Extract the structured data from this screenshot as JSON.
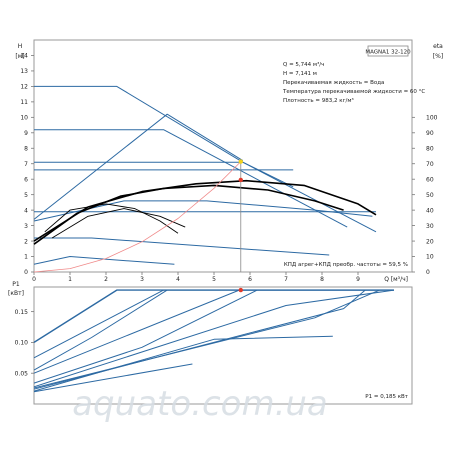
{
  "model_label": "MAGNA1 32-120",
  "watermark": "aquato.com.ua",
  "info_lines": [
    "Q = 5,744 м³/ч",
    "H = 7,141 м",
    "Перекачиваемая жидкость = Вода",
    "Температура перекачиваемой жидкости = 60 °C",
    "Плотность = 983,2 кг/м³"
  ],
  "efficiency_note": "КПД агрег+КПД преобр. частоты = 59,5 %",
  "power_note": "P1 = 0,185 кВт",
  "colors": {
    "curve": "#2d6aa3",
    "eff": "#000000",
    "system": "#f08a8a",
    "point_top": "#f2d21b",
    "point": "#e03a2a",
    "axis": "#444444"
  },
  "chart_data": [
    {
      "type": "line",
      "title": "",
      "xlabel": "Q [м³/ч]",
      "ylabel": "H [м]",
      "y2label": "eta [%]",
      "xlim": [
        0,
        10.5
      ],
      "ylim": [
        0,
        15
      ],
      "y2lim": [
        0,
        150
      ],
      "x_ticks": [
        0,
        1,
        2,
        3,
        4,
        5,
        6,
        7,
        8,
        9
      ],
      "y_ticks": [
        0,
        1,
        2,
        3,
        4,
        5,
        6,
        7,
        8,
        9,
        10,
        11,
        12,
        13,
        14
      ],
      "y2_ticks": [
        0,
        10,
        20,
        30,
        40,
        50,
        60,
        70,
        80,
        90,
        100
      ],
      "grid": false,
      "series": [
        {
          "role": "head",
          "x": [
            0,
            2.3,
            5.8,
            9.5
          ],
          "y": [
            12,
            12,
            7.1,
            2.6
          ]
        },
        {
          "role": "head",
          "x": [
            0,
            3.6,
            8.7
          ],
          "y": [
            9.2,
            9.2,
            2.9
          ]
        },
        {
          "role": "head",
          "x": [
            0,
            5.8,
            7.2
          ],
          "y": [
            7.1,
            7.1,
            5.5
          ]
        },
        {
          "role": "head",
          "x": [
            0,
            7.2
          ],
          "y": [
            6.6,
            6.6
          ]
        },
        {
          "role": "head",
          "x": [
            0,
            9.5
          ],
          "y": [
            3.9,
            3.9
          ]
        },
        {
          "role": "head",
          "x": [
            0,
            3.7,
            5.8
          ],
          "y": [
            3.4,
            10.2,
            7.2
          ]
        },
        {
          "role": "head",
          "x": [
            0,
            1.6,
            8.2
          ],
          "y": [
            2.2,
            2.2,
            1.1
          ]
        },
        {
          "role": "head",
          "x": [
            0,
            1.0,
            3.9
          ],
          "y": [
            0.5,
            1.0,
            0.5
          ]
        },
        {
          "role": "head",
          "x": [
            0,
            2.5,
            4.8,
            7.8,
            9.4
          ],
          "y": [
            3.3,
            4.6,
            4.6,
            4.0,
            3.6
          ]
        },
        {
          "role": "efficiency",
          "x": [
            0,
            1.5,
            3.0,
            4.5,
            5.9,
            7.5,
            9.0,
            9.5
          ],
          "y": [
            2.0,
            4.2,
            5.2,
            5.7,
            5.9,
            5.6,
            4.4,
            3.7
          ]
        },
        {
          "role": "efficiency",
          "x": [
            0,
            1.2,
            2.4,
            3.6,
            5.0,
            6.5,
            7.8,
            8.6
          ],
          "y": [
            1.8,
            3.8,
            4.9,
            5.4,
            5.6,
            5.3,
            4.6,
            4.0
          ]
        },
        {
          "role": "efficiency",
          "x": [
            0.3,
            1.0,
            2.0,
            2.8,
            3.5,
            4.0
          ],
          "y": [
            2.6,
            4.0,
            4.4,
            4.1,
            3.3,
            2.5
          ]
        },
        {
          "role": "efficiency",
          "x": [
            0.5,
            1.5,
            2.5,
            3.5,
            4.2
          ],
          "y": [
            2.2,
            3.6,
            4.1,
            3.6,
            2.9
          ]
        },
        {
          "role": "system",
          "x": [
            0,
            1,
            2,
            3,
            4,
            5,
            5.744
          ],
          "y": [
            0,
            0.22,
            0.87,
            1.95,
            3.46,
            5.41,
            7.141
          ]
        }
      ],
      "points": [
        {
          "x": 5.744,
          "y": 7.141,
          "role": "duty"
        },
        {
          "x": 5.744,
          "y": 5.95,
          "role": "efficiency"
        }
      ]
    },
    {
      "type": "line",
      "title": "",
      "ylabel": "P1 [кВт]",
      "xlim": [
        0,
        10.5
      ],
      "ylim": [
        0,
        0.19
      ],
      "y_ticks": [
        0.05,
        0.1,
        0.15
      ],
      "grid": false,
      "series": [
        {
          "x": [
            0,
            2.3,
            10.0
          ],
          "y": [
            0.1,
            0.185,
            0.185
          ]
        },
        {
          "x": [
            0,
            3.6,
            10.0
          ],
          "y": [
            0.075,
            0.185,
            0.185
          ]
        },
        {
          "x": [
            0,
            5.7,
            10.0
          ],
          "y": [
            0.05,
            0.185,
            0.185
          ]
        },
        {
          "x": [
            0,
            7.0,
            10.0
          ],
          "y": [
            0.028,
            0.16,
            0.185
          ]
        },
        {
          "x": [
            0,
            7.8,
            9.6
          ],
          "y": [
            0.026,
            0.14,
            0.185
          ]
        },
        {
          "x": [
            0,
            8.6,
            9.2
          ],
          "y": [
            0.024,
            0.155,
            0.185
          ]
        },
        {
          "x": [
            0,
            3.0,
            6.2
          ],
          "y": [
            0.034,
            0.092,
            0.185
          ]
        },
        {
          "x": [
            0,
            5.0,
            8.3
          ],
          "y": [
            0.021,
            0.105,
            0.11
          ]
        },
        {
          "x": [
            0,
            4.4
          ],
          "y": [
            0.02,
            0.065
          ]
        },
        {
          "x": [
            0,
            1.6,
            3.7
          ],
          "y": [
            0.055,
            0.108,
            0.185
          ]
        }
      ],
      "points": [
        {
          "x": 5.744,
          "y": 0.185,
          "role": "duty"
        }
      ]
    }
  ]
}
